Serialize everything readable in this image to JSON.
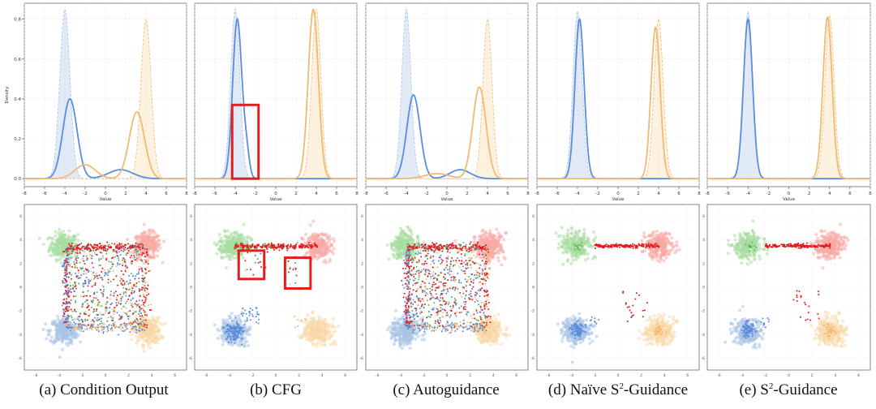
{
  "colors": {
    "blue": "#5b8ddb",
    "blue_light": "#a9c3e6",
    "orange": "#f2b970",
    "orange_light": "#f9d7a6",
    "green_light": "#a8dca0",
    "red_light": "#f7a9a4",
    "red": "#e41a1c",
    "box": "#e02020"
  },
  "captions": [
    {
      "pre": "(a) Condition Output",
      "sup": "",
      "post": ""
    },
    {
      "pre": "(b) CFG",
      "sup": "",
      "post": ""
    },
    {
      "pre": "(c) Autoguidance",
      "sup": "",
      "post": ""
    },
    {
      "pre": "(d) Naïve S",
      "sup": "2",
      "post": "-Guidance"
    },
    {
      "pre": "(e) S",
      "sup": "2",
      "post": "-Guidance"
    }
  ],
  "chart_data": [
    {
      "type": "line",
      "panel": "a",
      "xlabel": "Value",
      "ylabel": "Density",
      "xlim": [
        -8,
        8
      ],
      "ylim": [
        -0.04,
        0.88
      ],
      "xticks": [
        -8,
        -6,
        -4,
        -2,
        0,
        2,
        4,
        6,
        8
      ],
      "yticks": [
        0.0,
        0.2,
        0.4,
        0.6,
        0.8
      ],
      "target": {
        "blue": [
          {
            "mu": -4,
            "sd": 0.5,
            "a": 0.85
          }
        ],
        "orange": [
          {
            "mu": 4,
            "sd": 0.5,
            "a": 0.8
          }
        ]
      },
      "series": [
        {
          "name": "blue",
          "comps": [
            {
              "mu": -3.5,
              "sd": 0.7,
              "a": 0.4
            },
            {
              "mu": 1.5,
              "sd": 1.2,
              "a": 0.045
            }
          ]
        },
        {
          "name": "orange",
          "comps": [
            {
              "mu": 3.1,
              "sd": 0.75,
              "a": 0.335
            },
            {
              "mu": -2.0,
              "sd": 1.0,
              "a": 0.07
            }
          ]
        }
      ]
    },
    {
      "type": "line",
      "panel": "b",
      "xlabel": "Value",
      "ylabel": "",
      "xlim": [
        -8,
        8
      ],
      "ylim": [
        -0.04,
        0.88
      ],
      "xticks": [
        -8,
        -6,
        -4,
        -2,
        0,
        2,
        4,
        6,
        8
      ],
      "yticks": [],
      "target": {
        "blue": [
          {
            "mu": -4,
            "sd": 0.45,
            "a": 0.85
          }
        ],
        "orange": [
          {
            "mu": 4,
            "sd": 0.45,
            "a": 0.85
          }
        ]
      },
      "series": [
        {
          "name": "blue",
          "comps": [
            {
              "mu": -3.8,
              "sd": 0.45,
              "a": 0.8
            },
            {
              "mu": -2.9,
              "sd": 0.3,
              "a": 0.12
            }
          ]
        },
        {
          "name": "orange",
          "comps": [
            {
              "mu": 3.7,
              "sd": 0.5,
              "a": 0.85
            }
          ]
        }
      ],
      "highlight": [
        -4.3,
        -1.7,
        0.0,
        0.37
      ]
    },
    {
      "type": "line",
      "panel": "c",
      "xlabel": "Value",
      "ylabel": "",
      "xlim": [
        -8,
        8
      ],
      "ylim": [
        -0.04,
        0.88
      ],
      "xticks": [
        -8,
        -6,
        -4,
        -2,
        0,
        2,
        4,
        6,
        8
      ],
      "yticks": [],
      "target": {
        "blue": [
          {
            "mu": -4,
            "sd": 0.45,
            "a": 0.85
          }
        ],
        "orange": [
          {
            "mu": 4,
            "sd": 0.45,
            "a": 0.8
          }
        ]
      },
      "series": [
        {
          "name": "blue",
          "comps": [
            {
              "mu": -3.3,
              "sd": 0.65,
              "a": 0.42
            },
            {
              "mu": 1.3,
              "sd": 1.0,
              "a": 0.045
            }
          ]
        },
        {
          "name": "orange",
          "comps": [
            {
              "mu": 3.2,
              "sd": 0.65,
              "a": 0.46
            },
            {
              "mu": -1.0,
              "sd": 1.2,
              "a": 0.025
            }
          ]
        }
      ]
    },
    {
      "type": "line",
      "panel": "d",
      "xlabel": "Value",
      "ylabel": "",
      "xlim": [
        -8,
        8
      ],
      "ylim": [
        -0.04,
        0.88
      ],
      "xticks": [
        -8,
        -6,
        -4,
        -2,
        0,
        2,
        4,
        6,
        8
      ],
      "yticks": [],
      "target": {
        "blue": [
          {
            "mu": -4,
            "sd": 0.45,
            "a": 0.84
          }
        ],
        "orange": [
          {
            "mu": 4,
            "sd": 0.45,
            "a": 0.8
          }
        ]
      },
      "series": [
        {
          "name": "blue",
          "comps": [
            {
              "mu": -3.8,
              "sd": 0.45,
              "a": 0.8
            }
          ]
        },
        {
          "name": "orange",
          "comps": [
            {
              "mu": 3.7,
              "sd": 0.45,
              "a": 0.76
            }
          ]
        }
      ]
    },
    {
      "type": "line",
      "panel": "e",
      "xlabel": "Value",
      "ylabel": "",
      "xlim": [
        -8,
        8
      ],
      "ylim": [
        -0.04,
        0.88
      ],
      "xticks": [
        -8,
        -6,
        -4,
        -2,
        0,
        2,
        4,
        6,
        8
      ],
      "yticks": [],
      "target": {
        "blue": [
          {
            "mu": -4,
            "sd": 0.45,
            "a": 0.84
          }
        ],
        "orange": [
          {
            "mu": 4,
            "sd": 0.45,
            "a": 0.82
          }
        ]
      },
      "series": [
        {
          "name": "blue",
          "comps": [
            {
              "mu": -4.0,
              "sd": 0.45,
              "a": 0.8
            }
          ]
        },
        {
          "name": "orange",
          "comps": [
            {
              "mu": 3.8,
              "sd": 0.45,
              "a": 0.81
            }
          ]
        }
      ]
    },
    {
      "type": "scatter",
      "panel": "a",
      "xlim": [
        -7,
        7
      ],
      "ylim": [
        -7,
        7
      ],
      "xticks": [
        -6,
        -4,
        -2,
        0,
        2,
        4,
        6
      ],
      "yticks": [
        -6,
        -4,
        -2,
        0,
        2,
        4,
        6
      ],
      "clusters": [
        {
          "name": "green",
          "center": [
            -3.6,
            3.5
          ]
        },
        {
          "name": "red",
          "center": [
            3.6,
            3.5
          ]
        },
        {
          "name": "blue",
          "center": [
            -3.6,
            -3.7
          ]
        },
        {
          "name": "orange",
          "center": [
            3.6,
            -3.7
          ]
        }
      ],
      "samples": "square-filled",
      "density": 1.0
    },
    {
      "type": "scatter",
      "panel": "b",
      "xlim": [
        -7,
        7
      ],
      "ylim": [
        -7,
        7
      ],
      "xticks": [
        -6,
        -4,
        -2,
        0,
        2,
        4,
        6
      ],
      "yticks": [
        -6,
        -4,
        -2,
        0,
        2,
        4,
        6
      ],
      "samples": "edges-top-sparse",
      "density": 0.35,
      "highlights": [
        [
          -3.2,
          3.1,
          -1.0,
          0.7
        ],
        [
          0.8,
          2.5,
          3.0,
          -0.1
        ]
      ]
    },
    {
      "type": "scatter",
      "panel": "c",
      "xlim": [
        -7,
        7
      ],
      "ylim": [
        -7,
        7
      ],
      "xticks": [
        -6,
        -4,
        -2,
        0,
        2,
        4,
        6
      ],
      "yticks": [
        -6,
        -4,
        -2,
        0,
        2,
        4,
        6
      ],
      "samples": "square-filled",
      "density": 1.0
    },
    {
      "type": "scatter",
      "panel": "d",
      "xlim": [
        -7,
        7
      ],
      "ylim": [
        -7,
        7
      ],
      "xticks": [
        -6,
        -4,
        -2,
        0,
        2,
        4,
        6
      ],
      "yticks": [
        -6,
        -4,
        -2,
        0,
        2,
        4,
        6
      ],
      "samples": "top-line",
      "density": 0.25
    },
    {
      "type": "scatter",
      "panel": "e",
      "xlim": [
        -7,
        7
      ],
      "ylim": [
        -7,
        7
      ],
      "xticks": [
        -6,
        -4,
        -2,
        0,
        2,
        4,
        6
      ],
      "yticks": [
        -6,
        -4,
        -2,
        0,
        2,
        4,
        6
      ],
      "samples": "top-line",
      "density": 0.2
    }
  ]
}
